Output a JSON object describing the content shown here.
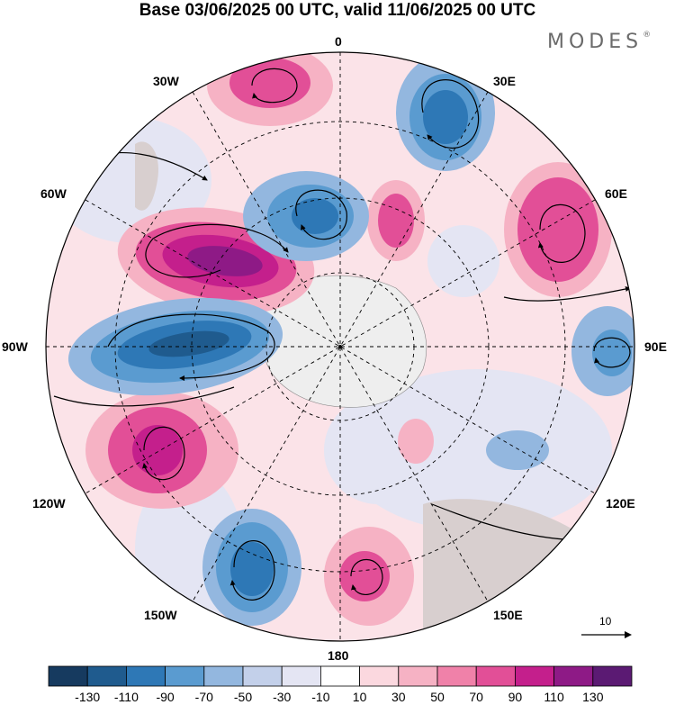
{
  "title": "Base 03/06/2025 00 UTC, valid 11/06/2025 00 UTC",
  "brand": "MODES",
  "brand_mark": "®",
  "longitude_labels": {
    "lon_0": "0",
    "lon_30e": "30E",
    "lon_60e": "60E",
    "lon_90e": "90E",
    "lon_120e": "120E",
    "lon_150e": "150E",
    "lon_180": "180",
    "lon_150w": "150W",
    "lon_120w": "120W",
    "lon_90w": "90W",
    "lon_60w": "60W",
    "lon_30w": "30W"
  },
  "vector_key": {
    "label": "10"
  },
  "colorbar": {
    "labels": [
      "-130",
      "-110",
      "-90",
      "-70",
      "-50",
      "-30",
      "-10",
      "10",
      "30",
      "50",
      "70",
      "90",
      "110",
      "130"
    ],
    "colors": [
      "#163a5f",
      "#1f5b8e",
      "#2e78b6",
      "#5a9bd0",
      "#93b7df",
      "#c3d0ea",
      "#e4e5f3",
      "#ffffff",
      "#fbd8df",
      "#f6b2c4",
      "#f081a9",
      "#e24f97",
      "#c41f8c",
      "#8e1a86",
      "#5b1a73"
    ]
  },
  "map": {
    "projection": "south polar stereographic",
    "colors": {
      "strong_neg": "#2e78b6",
      "mid_neg": "#5a9bd0",
      "weak_neg": "#c3d0ea",
      "vweak_neg": "#e4e5f3",
      "vweak_pos": "#fbd8df",
      "weak_pos": "#f6b2c4",
      "mid_pos": "#f081a9",
      "strong_pos": "#c41f8c",
      "vstrong_pos": "#8e1a86",
      "land": "#d8cfcf",
      "ice": "#eeeeee"
    }
  }
}
